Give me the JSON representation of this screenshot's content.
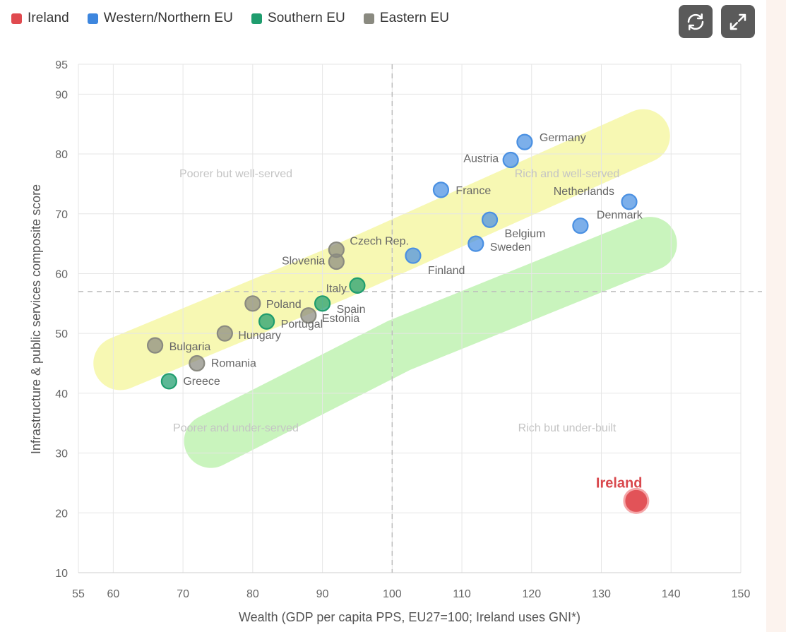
{
  "legend": [
    {
      "label": "Ireland",
      "color": "#e04a4f"
    },
    {
      "label": "Western/Northern EU",
      "color": "#3d86de"
    },
    {
      "label": "Southern EU",
      "color": "#1f9d6e"
    },
    {
      "label": "Eastern EU",
      "color": "#8a8a80"
    }
  ],
  "toolbar": {
    "refresh_icon": "refresh-icon",
    "expand_icon": "expand-icon"
  },
  "chart_data": {
    "type": "scatter",
    "xlabel": "Wealth (GDP per capita PPS, EU27=100; Ireland uses GNI*)",
    "ylabel": "Infrastructure & public services composite score",
    "xlim": [
      55,
      150
    ],
    "ylim": [
      10,
      95
    ],
    "x_ticks": [
      55,
      60,
      70,
      80,
      90,
      100,
      110,
      120,
      130,
      140,
      150
    ],
    "y_ticks": [
      10,
      20,
      30,
      40,
      50,
      60,
      70,
      80,
      90,
      95
    ],
    "reference_lines": {
      "x": 100,
      "y": 57
    },
    "quadrant_labels": {
      "top_left": "Poorer but well-served",
      "top_right": "Rich and well-served",
      "bottom_left": "Poorer and under-served",
      "bottom_right": "Rich but under-built"
    },
    "bands": [
      {
        "name": "yellow-band",
        "color": "#f6f7a6",
        "path": [
          [
            61,
            45
          ],
          [
            92,
            60
          ],
          [
            136,
            83
          ]
        ]
      },
      {
        "name": "green-band",
        "color": "#bff2b2",
        "path": [
          [
            74,
            32
          ],
          [
            101,
            48
          ],
          [
            137,
            65
          ]
        ]
      }
    ],
    "series": [
      {
        "name": "Ireland",
        "color": "#e04a4f",
        "points": [
          {
            "label": "Ireland",
            "x": 135,
            "y": 22
          }
        ]
      },
      {
        "name": "Western/Northern EU",
        "color": "#4a90e2",
        "points": [
          {
            "label": "Germany",
            "x": 119,
            "y": 82
          },
          {
            "label": "Austria",
            "x": 117,
            "y": 79
          },
          {
            "label": "France",
            "x": 107,
            "y": 74
          },
          {
            "label": "Netherlands",
            "x": 134,
            "y": 72
          },
          {
            "label": "Denmark",
            "x": 127,
            "y": 68
          },
          {
            "label": "Belgium",
            "x": 114,
            "y": 69
          },
          {
            "label": "Sweden",
            "x": 112,
            "y": 65
          },
          {
            "label": "Finland",
            "x": 103,
            "y": 63
          }
        ]
      },
      {
        "name": "Southern EU",
        "color": "#1f9d6e",
        "points": [
          {
            "label": "Italy",
            "x": 95,
            "y": 58
          },
          {
            "label": "Spain",
            "x": 90,
            "y": 55
          },
          {
            "label": "Portugal",
            "x": 82,
            "y": 52
          },
          {
            "label": "Greece",
            "x": 68,
            "y": 42
          }
        ]
      },
      {
        "name": "Eastern EU",
        "color": "#8a8a80",
        "points": [
          {
            "label": "Czech Rep.",
            "x": 92,
            "y": 64
          },
          {
            "label": "Slovenia",
            "x": 92,
            "y": 62
          },
          {
            "label": "Poland",
            "x": 80,
            "y": 55
          },
          {
            "label": "Estonia",
            "x": 88,
            "y": 53
          },
          {
            "label": "Hungary",
            "x": 76,
            "y": 50
          },
          {
            "label": "Bulgaria",
            "x": 66,
            "y": 48
          },
          {
            "label": "Romania",
            "x": 72,
            "y": 45
          }
        ]
      }
    ]
  }
}
